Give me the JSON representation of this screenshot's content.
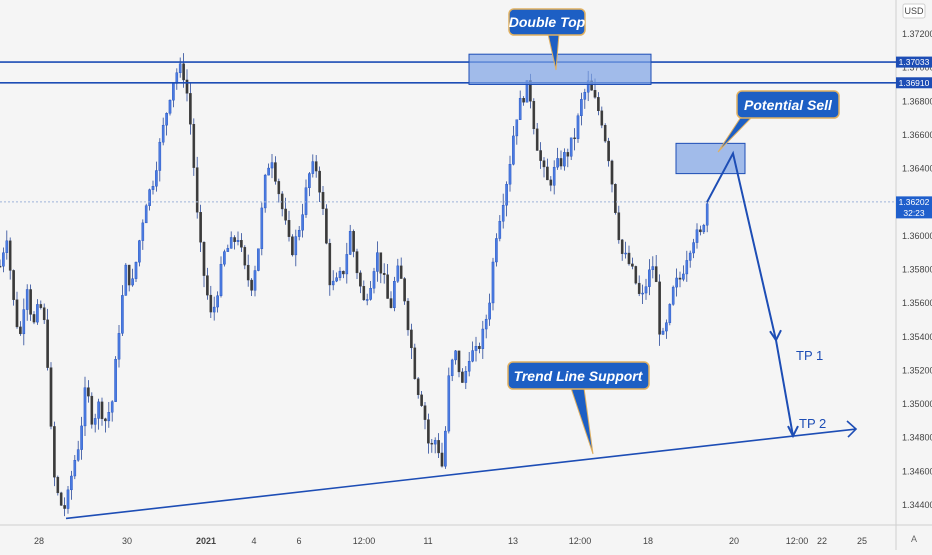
{
  "chart_data": {
    "type": "candlestick",
    "currency": "USD",
    "y_ticks": [
      "1.37200",
      "1.37000",
      "1.36800",
      "1.36600",
      "1.36400",
      "1.36200",
      "1.36000",
      "1.35800",
      "1.35600",
      "1.35400",
      "1.35200",
      "1.35000",
      "1.34800",
      "1.34600",
      "1.34400"
    ],
    "x_ticks": [
      "28",
      "30",
      "2021",
      "4",
      "6",
      "12:00",
      "11",
      "13",
      "12:00",
      "18",
      "20",
      "12:00",
      "22",
      "25"
    ],
    "ylim": [
      1.3432,
      1.3744
    ],
    "levels": [
      {
        "label": "1.37033",
        "value": 1.37033
      },
      {
        "label": "1.36910",
        "value": 1.3691
      }
    ],
    "current_price": {
      "label": "1.36202",
      "value": 1.36202,
      "countdown": "32:23"
    },
    "annotations": {
      "double_top": "Double Top",
      "potential_sell": "Potential Sell",
      "trend_line_support": "Trend Line Support",
      "tp1": "TP 1",
      "tp2": "TP 2"
    },
    "sell_zone": {
      "low": 1.3637,
      "high": 1.3655
    },
    "trendline": [
      {
        "date": "Dec 28",
        "price": 1.3432
      },
      {
        "date": "Jan 22",
        "price": 1.3481
      }
    ],
    "projection": [
      {
        "price": 1.3649
      },
      {
        "price": 1.3538
      },
      {
        "price": 1.3481
      }
    ],
    "path": [
      1.3582,
      1.3602,
      1.3562,
      1.3538,
      1.3575,
      1.3545,
      1.356,
      1.3542,
      1.346,
      1.3441,
      1.3438,
      1.3462,
      1.3478,
      1.351,
      1.349,
      1.35,
      1.349,
      1.3502,
      1.3545,
      1.358,
      1.357,
      1.3595,
      1.362,
      1.363,
      1.365,
      1.367,
      1.369,
      1.37,
      1.3695,
      1.366,
      1.3602,
      1.3573,
      1.355,
      1.357,
      1.359,
      1.3595,
      1.36,
      1.358,
      1.357,
      1.359,
      1.363,
      1.365,
      1.363,
      1.361,
      1.359,
      1.36,
      1.362,
      1.364,
      1.364,
      1.361,
      1.357,
      1.3572,
      1.358,
      1.3602,
      1.358,
      1.356,
      1.3572,
      1.359,
      1.3575,
      1.3555,
      1.358,
      1.357,
      1.354,
      1.3512,
      1.35,
      1.3472,
      1.348,
      1.3461,
      1.352,
      1.353,
      1.351,
      1.353,
      1.353,
      1.354,
      1.356,
      1.36,
      1.362,
      1.364,
      1.367,
      1.3682,
      1.369,
      1.366,
      1.364,
      1.363,
      1.364,
      1.3645,
      1.365,
      1.366,
      1.368,
      1.369,
      1.368,
      1.367,
      1.365,
      1.362,
      1.359,
      1.3585,
      1.3575,
      1.356,
      1.3575,
      1.3585,
      1.3535,
      1.3548,
      1.357,
      1.3575,
      1.359,
      1.36,
      1.36,
      1.362
    ]
  }
}
